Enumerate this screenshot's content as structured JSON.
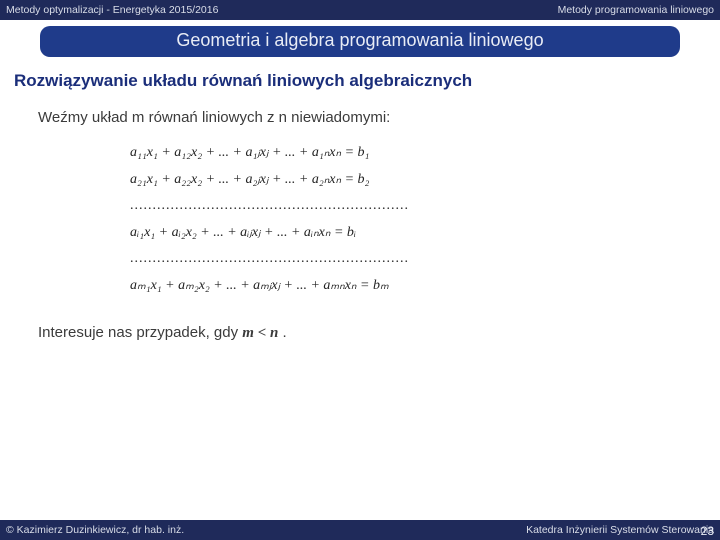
{
  "header": {
    "left": "Metody optymalizacji -  Energetyka  2015/2016",
    "right": "Metody programowania liniowego"
  },
  "banner": "Geometria  i algebra programowania liniowego",
  "heading": "Rozwiązywanie układu równań liniowych algebraicznych",
  "intro": "Weźmy układ m równań liniowych z n niewiadomymi:",
  "eq": {
    "r1": "a₁₁x₁ + a₁₂x₂ + ... + a₁ⱼxⱼ + ... + a₁ₙxₙ = b₁",
    "r2": "a₂₁x₁ + a₂₂x₂ + ... + a₂ⱼxⱼ + ... + a₂ₙxₙ = b₂",
    "d1": "..............................................................",
    "ri": "aᵢ₁x₁ + aᵢ₂x₂ + ... + aᵢⱼxⱼ + ... + aᵢₙxₙ = bᵢ",
    "d2": "..............................................................",
    "rm": "aₘ₁x₁ + aₘ₂x₂ + ... + aₘⱼxⱼ + ... + aₘₙxₙ = bₘ"
  },
  "closing_pre": "Interesuje nas przypadek, gdy ",
  "closing_math": "m < n",
  "closing_post": " .",
  "footer": {
    "left": "© Kazimierz Duzinkiewicz, dr hab. inż.",
    "right": "Katedra Inżynierii Systemów Sterowania",
    "page": "23"
  },
  "colors": {
    "bar_bg": "#1f2a5a",
    "bar_text": "#d9dde8",
    "banner_bg": "#1f3b8a",
    "banner_text": "#e8ecf5",
    "heading": "#1b2e7a",
    "body_text": "#3b3b3b"
  }
}
